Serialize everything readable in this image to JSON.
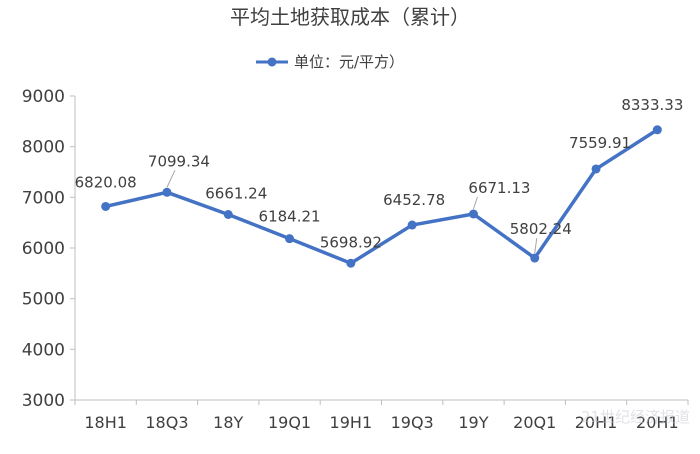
{
  "chart_data": {
    "type": "line",
    "title": "平均土地获取成本（累计）",
    "categories": [
      "18H1",
      "18Q3",
      "18Y",
      "19Q1",
      "19H1",
      "19Q3",
      "19Y",
      "20Q1",
      "20H1",
      "20H1"
    ],
    "series": [
      {
        "name": "单位：元/平方）",
        "values": [
          6820.08,
          7099.34,
          6661.24,
          6184.21,
          5698.92,
          6452.78,
          6671.13,
          5802.24,
          7559.91,
          8333.33
        ]
      }
    ],
    "data_labels": [
      "6820.08",
      "7099.34",
      "6661.24",
      "6184.21",
      "5698.92",
      "6452.78",
      "6671.13",
      "5802.24",
      "7559.91",
      "8333.33"
    ],
    "ylim": [
      3000,
      9000
    ],
    "yticks": [
      3000,
      4000,
      5000,
      6000,
      7000,
      8000,
      9000
    ],
    "grid": false,
    "legend_position": "top-center",
    "line_color": "#4472C4"
  },
  "watermark": "21世纪经济报道"
}
